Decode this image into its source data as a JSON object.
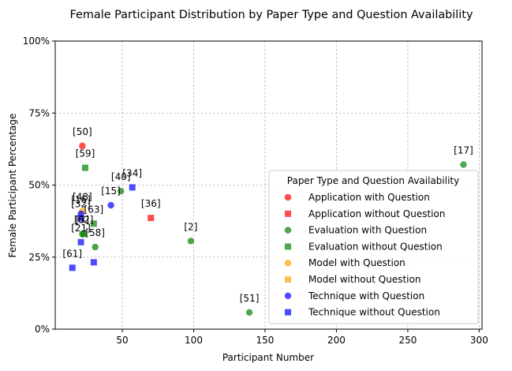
{
  "chart_data": {
    "type": "scatter",
    "title": "Female Participant Distribution by Paper Type and Question Availability",
    "xlabel": "Participant Number",
    "ylabel": "Female Participant Percentage",
    "xlim": [
      3,
      302
    ],
    "ylim": [
      0,
      1
    ],
    "xticks": [
      50,
      100,
      150,
      200,
      250,
      300
    ],
    "xtick_labels": [
      "50",
      "100",
      "150",
      "200",
      "250",
      "300"
    ],
    "yticks": [
      0,
      0.25,
      0.5,
      0.75,
      1.0
    ],
    "ytick_labels": [
      "0%",
      "25%",
      "50%",
      "75%",
      "100%"
    ],
    "grid": true,
    "legend": {
      "title": "Paper Type and Question Availability",
      "placement": "lower-right"
    },
    "series": [
      {
        "name": "Application with Question",
        "color": "#ff0000",
        "marker": "circle",
        "points": [
          {
            "x": 22,
            "y": 0.636,
            "label": "[50]"
          }
        ]
      },
      {
        "name": "Application without Question",
        "color": "#ff0000",
        "marker": "square",
        "points": [
          {
            "x": 70,
            "y": 0.386,
            "label": "[36]"
          }
        ]
      },
      {
        "name": "Evaluation with Question",
        "color": "#008000",
        "marker": "circle",
        "points": [
          {
            "x": 289,
            "y": 0.571,
            "label": "[17]"
          },
          {
            "x": 98,
            "y": 0.306,
            "label": "[2]"
          },
          {
            "x": 139,
            "y": 0.058,
            "label": "[51]"
          },
          {
            "x": 49,
            "y": 0.479,
            "label": "[40]"
          },
          {
            "x": 31,
            "y": 0.285,
            "label": "[58]"
          },
          {
            "x": 22,
            "y": 0.33,
            "label": "[3]"
          }
        ]
      },
      {
        "name": "Evaluation without Question",
        "color": "#008000",
        "marker": "square",
        "points": [
          {
            "x": 24,
            "y": 0.56,
            "label": "[59]"
          },
          {
            "x": 30,
            "y": 0.366,
            "label": "[63]"
          },
          {
            "x": 23,
            "y": 0.33,
            "label": "[62]"
          }
        ]
      },
      {
        "name": "Model with Question",
        "color": "#ffa500",
        "marker": "circle",
        "points": [
          {
            "x": 22,
            "y": 0.41,
            "label": "[48]"
          }
        ]
      },
      {
        "name": "Model without Question",
        "color": "#ffa500",
        "marker": "square",
        "points": []
      },
      {
        "name": "Technique with Question",
        "color": "#0000ff",
        "marker": "circle",
        "points": [
          {
            "x": 42,
            "y": 0.43,
            "label": "[15]"
          },
          {
            "x": 21,
            "y": 0.4,
            "label": "[16]"
          }
        ]
      },
      {
        "name": "Technique without Question",
        "color": "#0000ff",
        "marker": "square",
        "points": [
          {
            "x": 57,
            "y": 0.492,
            "label": "[34]"
          },
          {
            "x": 30,
            "y": 0.232,
            "label": ""
          },
          {
            "x": 15,
            "y": 0.213,
            "label": "[61]"
          },
          {
            "x": 21,
            "y": 0.302,
            "label": "[21]"
          },
          {
            "x": 21,
            "y": 0.385,
            "label": "[32]"
          }
        ]
      }
    ]
  }
}
